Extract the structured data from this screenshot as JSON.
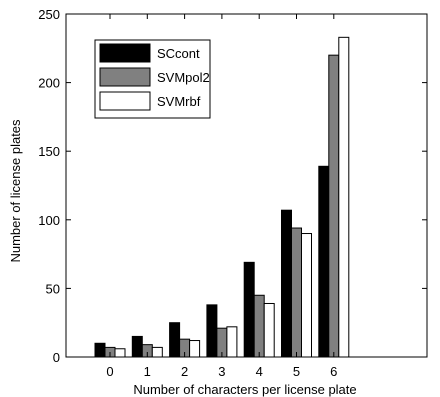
{
  "chart_data": {
    "type": "bar",
    "xlabel": "Number of characters per license plate",
    "ylabel": "Number of license plates",
    "categories": [
      "0",
      "1",
      "2",
      "3",
      "4",
      "5",
      "6"
    ],
    "ylim": [
      0,
      250
    ],
    "yticks": [
      0,
      50,
      100,
      150,
      200,
      250
    ],
    "series": [
      {
        "name": "SCcont",
        "color": "#000000",
        "values": [
          10,
          15,
          25,
          38,
          69,
          107,
          139
        ]
      },
      {
        "name": "SVMpol2",
        "color": "#808080",
        "values": [
          7,
          9,
          13,
          21,
          45,
          94,
          220
        ]
      },
      {
        "name": "SVMrbf",
        "color": "#ffffff",
        "values": [
          6,
          7,
          12,
          22,
          39,
          90,
          233
        ]
      }
    ],
    "legend_position": "top-left",
    "grid": false
  }
}
